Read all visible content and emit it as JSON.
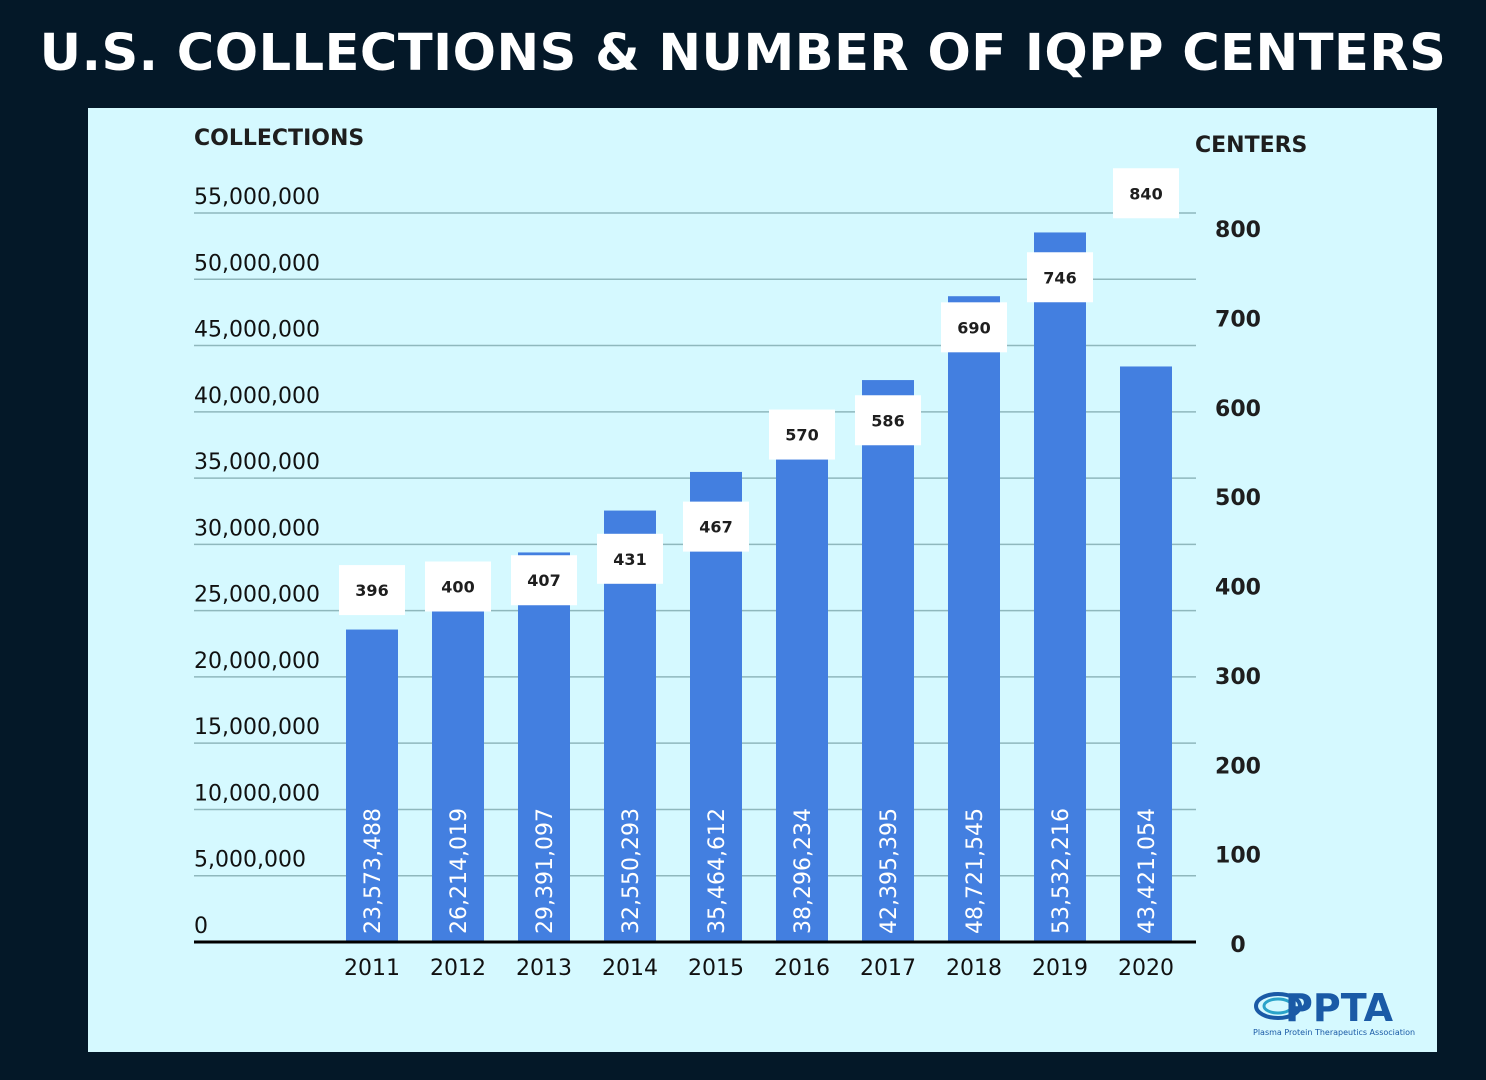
{
  "colors": {
    "background": "#041828",
    "panel": "#d5f9ff",
    "bar": "#437fe0",
    "grid": "#8fb8bd",
    "brand": "#1a5aa6"
  },
  "chart_data": {
    "type": "bar",
    "title": "U.S. COLLECTIONS & NUMBER OF IQPP CENTERS",
    "ylabel": "COLLECTIONS",
    "y2label": "CENTERS",
    "ylim": [
      0,
      55000000
    ],
    "y2lim": [
      0,
      800
    ],
    "yticks": [
      "0",
      "5,000,000",
      "10,000,000",
      "15,000,000",
      "20,000,000",
      "25,000,000",
      "30,000,000",
      "35,000,000",
      "40,000,000",
      "45,000,000",
      "50,000,000",
      "55,000,000"
    ],
    "y2ticks": [
      "0",
      "100",
      "200",
      "300",
      "400",
      "500",
      "600",
      "700",
      "800"
    ],
    "categories": [
      "2011",
      "2012",
      "2013",
      "2014",
      "2015",
      "2016",
      "2017",
      "2018",
      "2019",
      "2020"
    ],
    "series": [
      {
        "name": "Collections",
        "axis": "left",
        "values": [
          23573488,
          26214019,
          29391097,
          32550293,
          35464612,
          38296234,
          42395395,
          48721545,
          53532216,
          43421054
        ],
        "labels": [
          "23,573,488",
          "26,214,019",
          "29,391,097",
          "32,550,293",
          "35,464,612",
          "38,296,234",
          "42,395,395",
          "48,721,545",
          "53,532,216",
          "43,421,054"
        ]
      },
      {
        "name": "Centers",
        "axis": "right",
        "values": [
          396,
          400,
          407,
          431,
          467,
          570,
          586,
          690,
          746,
          840
        ],
        "labels": [
          "396",
          "400",
          "407",
          "431",
          "467",
          "570",
          "586",
          "690",
          "746",
          "840"
        ]
      }
    ]
  },
  "logo": {
    "name": "PPTA",
    "tagline": "Plasma Protein Therapeutics Association"
  }
}
